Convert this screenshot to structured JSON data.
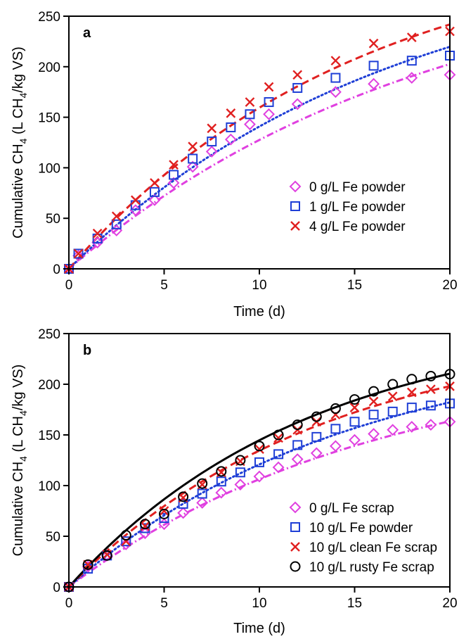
{
  "figure": {
    "xlabel": "Time (d)",
    "ylabel_main": "Cumulative CH",
    "ylabel_sub1": "4",
    "ylabel_mid": " (L CH",
    "ylabel_sub2": "4",
    "ylabel_tail": "/kg VS)"
  },
  "colors": {
    "magenta": "#e040e0",
    "blue": "#1f3fd6",
    "red": "#e02020",
    "black": "#000000"
  },
  "chart_data": [
    {
      "panel": "a",
      "type": "scatter",
      "xlabel": "Time (d)",
      "ylabel": "Cumulative CH4 (L CH4/kg VS)",
      "xlim": [
        0,
        20
      ],
      "ylim": [
        0,
        250
      ],
      "xticks": [
        "0",
        "5",
        "10",
        "15",
        "20"
      ],
      "yticks": [
        "0",
        "50",
        "100",
        "150",
        "200",
        "250"
      ],
      "legend_position": "middle-right",
      "series": [
        {
          "name": "0 g/L Fe powder",
          "marker": "diamond",
          "color": "#e040e0",
          "fit_style": "dashdot",
          "fit": {
            "P": 310,
            "k": 0.053
          },
          "x": [
            0,
            0.5,
            1.5,
            2.5,
            3.5,
            4.5,
            5.5,
            6.5,
            7.5,
            8.5,
            9.5,
            10.5,
            12,
            14,
            16,
            18,
            20
          ],
          "y": [
            0,
            13,
            26,
            38,
            58,
            68,
            85,
            101,
            116,
            128,
            143,
            153,
            163,
            175,
            183,
            189,
            192
          ]
        },
        {
          "name": "1 g/L Fe powder",
          "marker": "square",
          "color": "#1f3fd6",
          "fit_style": "dotted",
          "fit": {
            "P": 320,
            "k": 0.058
          },
          "x": [
            0,
            0.5,
            1.5,
            2.5,
            3.5,
            4.5,
            5.5,
            6.5,
            7.5,
            8.5,
            9.5,
            10.5,
            12,
            14,
            16,
            18,
            20
          ],
          "y": [
            0,
            15,
            30,
            44,
            63,
            76,
            93,
            109,
            126,
            140,
            153,
            165,
            179,
            189,
            201,
            206,
            211
          ]
        },
        {
          "name": "4 g/L Fe powder",
          "marker": "x",
          "color": "#e02020",
          "fit_style": "dashed",
          "fit": {
            "P": 330,
            "k": 0.066
          },
          "x": [
            0,
            0.5,
            1.5,
            2.5,
            3.5,
            4.5,
            5.5,
            6.5,
            7.5,
            8.5,
            9.5,
            10.5,
            12,
            14,
            16,
            18,
            20
          ],
          "y": [
            0,
            15,
            35,
            52,
            68,
            85,
            103,
            121,
            139,
            154,
            165,
            180,
            192,
            206,
            223,
            229,
            235
          ]
        }
      ]
    },
    {
      "panel": "b",
      "type": "scatter",
      "xlabel": "Time (d)",
      "ylabel": "Cumulative CH4 (L CH4/kg VS)",
      "xlim": [
        0,
        20
      ],
      "ylim": [
        0,
        250
      ],
      "xticks": [
        "0",
        "5",
        "10",
        "15",
        "20"
      ],
      "yticks": [
        "0",
        "50",
        "100",
        "150",
        "200",
        "250"
      ],
      "legend_position": "bottom-right",
      "series": [
        {
          "name": "0 g/L Fe scrap",
          "marker": "diamond",
          "color": "#e040e0",
          "fit_style": "dashdot",
          "fit": {
            "P": 230,
            "k": 0.062
          },
          "x": [
            0,
            1,
            2,
            3,
            4,
            5,
            6,
            7,
            8,
            9,
            10,
            11,
            12,
            13,
            14,
            15,
            16,
            17,
            18,
            19,
            20
          ],
          "y": [
            0,
            20,
            31,
            42,
            53,
            62,
            73,
            83,
            93,
            101,
            109,
            118,
            126,
            132,
            139,
            145,
            151,
            155,
            158,
            160,
            163
          ]
        },
        {
          "name": "10 g/L Fe powder",
          "marker": "square",
          "color": "#1f3fd6",
          "fit_style": "dotted",
          "fit": {
            "P": 245,
            "k": 0.068
          },
          "x": [
            0,
            1,
            2,
            3,
            4,
            5,
            6,
            7,
            8,
            9,
            10,
            11,
            12,
            13,
            14,
            15,
            16,
            17,
            18,
            19,
            20
          ],
          "y": [
            0,
            18,
            31,
            45,
            58,
            68,
            82,
            92,
            104,
            113,
            123,
            131,
            140,
            148,
            156,
            163,
            170,
            173,
            177,
            179,
            181
          ]
        },
        {
          "name": "10 g/L clean Fe scrap",
          "marker": "x",
          "color": "#e02020",
          "fit_style": "dashed",
          "fit": {
            "P": 255,
            "k": 0.075
          },
          "x": [
            0,
            1,
            2,
            3,
            4,
            5,
            6,
            7,
            8,
            9,
            10,
            11,
            12,
            13,
            14,
            15,
            16,
            17,
            18,
            19,
            20
          ],
          "y": [
            0,
            22,
            32,
            45,
            60,
            75,
            88,
            101,
            113,
            124,
            136,
            147,
            155,
            163,
            170,
            177,
            183,
            188,
            192,
            195,
            198
          ]
        },
        {
          "name": "10 g/L rusty Fe scrap",
          "marker": "circle",
          "color": "#000000",
          "fit_style": "solid",
          "fit": {
            "P": 265,
            "k": 0.079
          },
          "x": [
            0,
            1,
            2,
            3,
            4,
            5,
            6,
            7,
            8,
            9,
            10,
            11,
            12,
            13,
            14,
            15,
            16,
            17,
            18,
            19,
            20
          ],
          "y": [
            0,
            22,
            31,
            51,
            62,
            72,
            89,
            102,
            114,
            125,
            139,
            150,
            160,
            168,
            176,
            185,
            193,
            200,
            205,
            208,
            210
          ]
        }
      ]
    }
  ]
}
